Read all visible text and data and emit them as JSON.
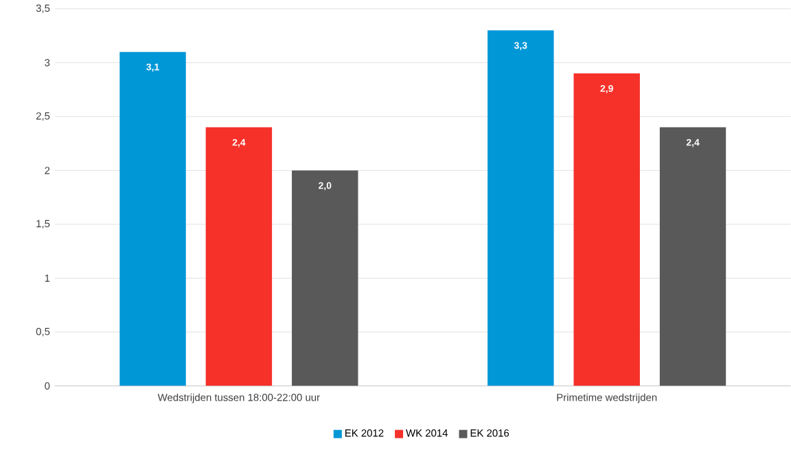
{
  "chart_data": {
    "type": "bar",
    "categories": [
      "Wedstrijden tussen 18:00-22:00 uur",
      "Primetime wedstrijden"
    ],
    "series": [
      {
        "name": "EK 2012",
        "color": "#0097d7",
        "values": [
          3.1,
          3.3
        ],
        "value_labels": [
          "3,1",
          "3,3"
        ]
      },
      {
        "name": "WK 2014",
        "color": "#f5312a",
        "values": [
          2.4,
          2.9
        ],
        "value_labels": [
          "2,4",
          "2,9"
        ]
      },
      {
        "name": "EK 2016",
        "color": "#595959",
        "values": [
          2.0,
          2.4
        ],
        "value_labels": [
          "2,0",
          "2,4"
        ]
      }
    ],
    "ylim": [
      0,
      3.5
    ],
    "yticks": [
      0,
      {
        "value": 0.5,
        "label": "0,5"
      },
      1,
      {
        "value": 1.5,
        "label": "1,5"
      },
      2,
      {
        "value": 2.5,
        "label": "2,5"
      },
      3,
      {
        "value": 3.5,
        "label": "3,5"
      }
    ],
    "grid": "y",
    "legend": "bottom"
  }
}
